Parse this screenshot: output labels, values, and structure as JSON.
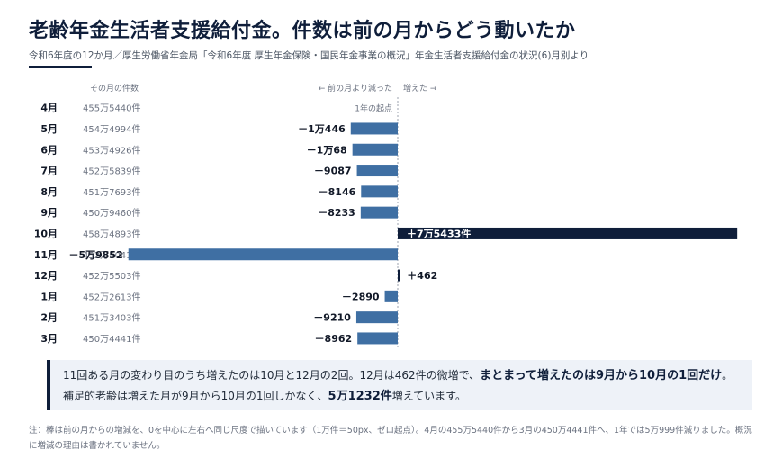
{
  "title": "老齢年金生活者支援給付金。件数は前の月からどう動いたか",
  "subtitle": "令和6年度の12か月／厚生労働省年金局「令和6年度 厚生年金保険・国民年金事業の概況」年金生活者支援給付金の状況(6)月別より",
  "colors": {
    "decrease": "#3f6fa3",
    "increase": "#0f1e3a",
    "accent": "#0f1e3a",
    "summary_bg": "#eef2f8"
  },
  "chart_data": {
    "type": "bar",
    "orientation": "horizontal-diverging",
    "column_header_counts": "その月の件数",
    "direction_label_left": "← 前の月より減った",
    "direction_label_right": "増えた →",
    "start_note": "1年の起点",
    "categories": [
      "4月",
      "5月",
      "6月",
      "7月",
      "8月",
      "9月",
      "10月",
      "11月",
      "12月",
      "1月",
      "2月",
      "3月"
    ],
    "counts": [
      "455万5440件",
      "454万4994件",
      "453万4926件",
      "452万5839件",
      "451万7693件",
      "450万9460件",
      "458万4893件",
      "452万5041件",
      "452万5503件",
      "452万2613件",
      "451万3403件",
      "450万4441件"
    ],
    "values": [
      null,
      -10446,
      -10068,
      -9087,
      -8146,
      -8233,
      75433,
      -59852,
      462,
      -2890,
      -9210,
      -8962
    ],
    "value_labels": [
      "",
      "－1万446",
      "－1万68",
      "－9087",
      "－8146",
      "－8233",
      "＋7万5433件",
      "－5万9852",
      "＋462",
      "－2890",
      "－9210",
      "－8962"
    ],
    "xlim": [
      -64000,
      76000
    ],
    "highlight_index": 6
  },
  "summary": {
    "p1": "11回ある月の変わり目のうち増えたのは10月と12月の2回。12月は462件の微増で、",
    "b1": "まとまって増えたのは9月から10月の1回だけ",
    "p2": "。補足的老齢は増えた月が9月から10月の1回しかなく、",
    "b2": "5万1232件",
    "p3": "増えています。"
  },
  "note": "注：棒は前の月からの増減を、0を中心に左右へ同じ尺度で描いています（1万件＝50px、ゼロ起点）。4月の455万5440件から3月の450万4441件へ、1年では5万999件減りました。概況に増減の理由は書かれていません。"
}
